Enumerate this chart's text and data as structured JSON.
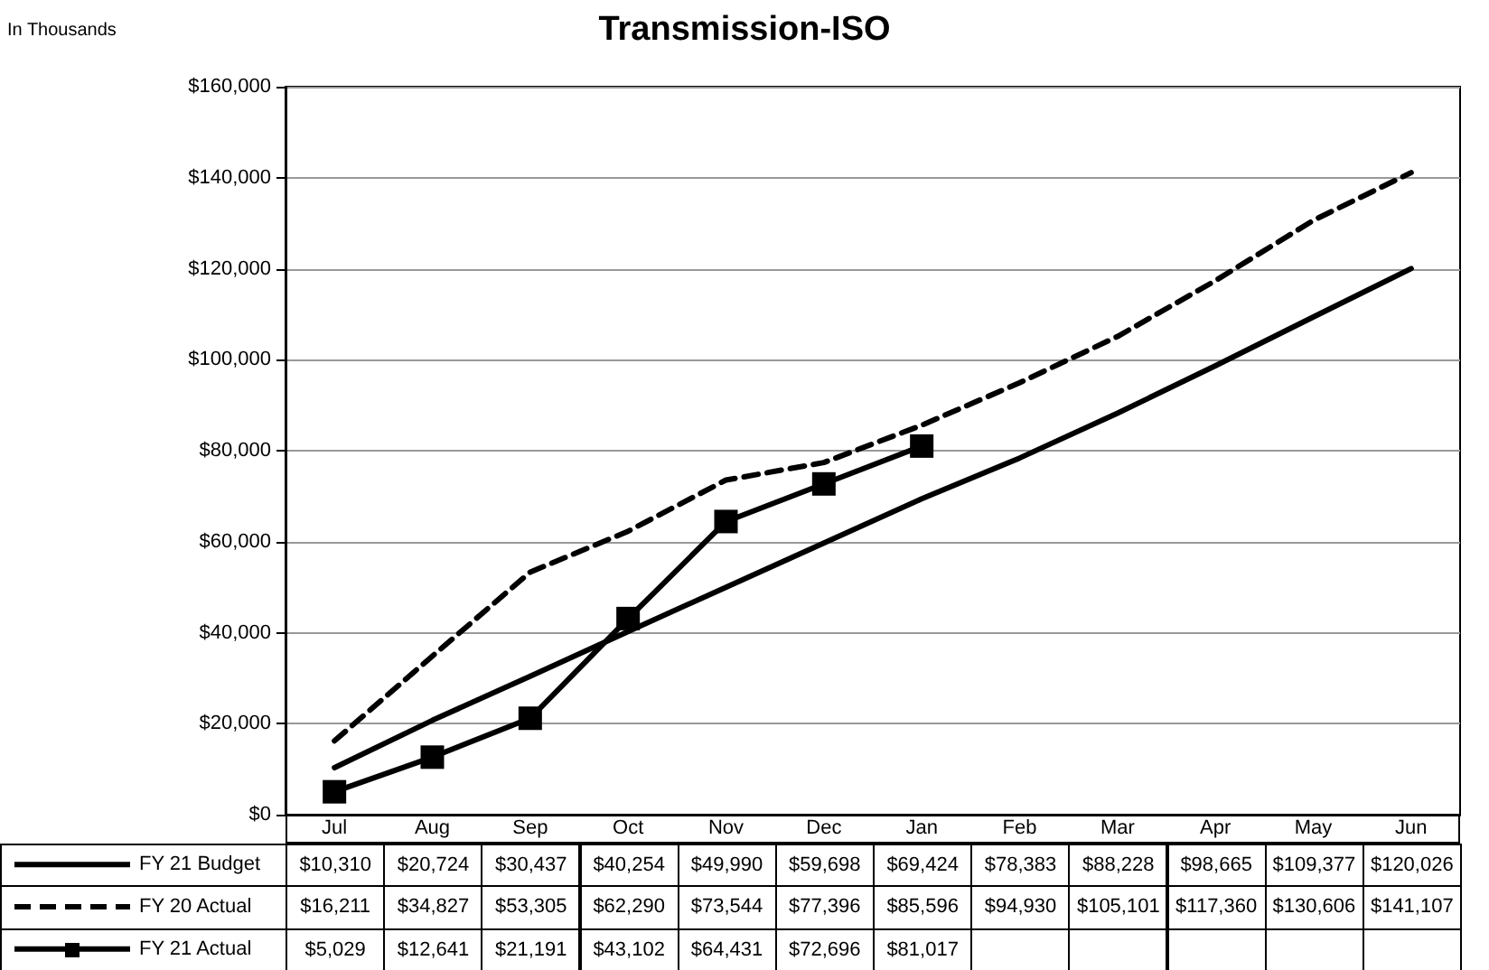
{
  "chart_data": {
    "type": "line",
    "title": "Transmission-ISO",
    "annotations": [
      "In Thousands"
    ],
    "categories": [
      "Jul",
      "Aug",
      "Sep",
      "Oct",
      "Nov",
      "Dec",
      "Jan",
      "Feb",
      "Mar",
      "Apr",
      "May",
      "Jun"
    ],
    "series": [
      {
        "name": "FY 21 Budget",
        "color": "#000000",
        "line_style": "solid",
        "marker": "none",
        "values": [
          10310,
          20724,
          30437,
          40254,
          49990,
          59698,
          69424,
          78383,
          88228,
          98665,
          109377,
          120026
        ],
        "value_labels": [
          "$10,310",
          "$20,724",
          "$30,437",
          "$40,254",
          "$49,990",
          "$59,698",
          "$69,424",
          "$78,383",
          "$88,228",
          "$98,665",
          "$109,377",
          "$120,026"
        ]
      },
      {
        "name": "FY 20 Actual",
        "color": "#000000",
        "line_style": "dashed",
        "marker": "none",
        "values": [
          16211,
          34827,
          53305,
          62290,
          73544,
          77396,
          85596,
          94930,
          105101,
          117360,
          130606,
          141107
        ],
        "value_labels": [
          "$16,211",
          "$34,827",
          "$53,305",
          "$62,290",
          "$73,544",
          "$77,396",
          "$85,596",
          "$94,930",
          "$105,101",
          "$117,360",
          "$130,606",
          "$141,107"
        ]
      },
      {
        "name": "FY 21 Actual",
        "color": "#000000",
        "line_style": "solid",
        "marker": "square",
        "values": [
          5029,
          12641,
          21191,
          43102,
          64431,
          72696,
          81017,
          null,
          null,
          null,
          null,
          null
        ],
        "value_labels": [
          "$5,029",
          "$12,641",
          "$21,191",
          "$43,102",
          "$64,431",
          "$72,696",
          "$81,017",
          null,
          null,
          null,
          null,
          null
        ]
      }
    ],
    "ylim": [
      0,
      160000
    ],
    "yticks": [
      {
        "value": 0,
        "label": "$0"
      },
      {
        "value": 20000,
        "label": "$20,000"
      },
      {
        "value": 40000,
        "label": "$40,000"
      },
      {
        "value": 60000,
        "label": "$60,000"
      },
      {
        "value": 80000,
        "label": "$80,000"
      },
      {
        "value": 100000,
        "label": "$100,000"
      },
      {
        "value": 120000,
        "label": "$120,000"
      },
      {
        "value": 140000,
        "label": "$140,000"
      },
      {
        "value": 160000,
        "label": "$160,000"
      }
    ],
    "grid": "y",
    "legend": "bottom left"
  }
}
